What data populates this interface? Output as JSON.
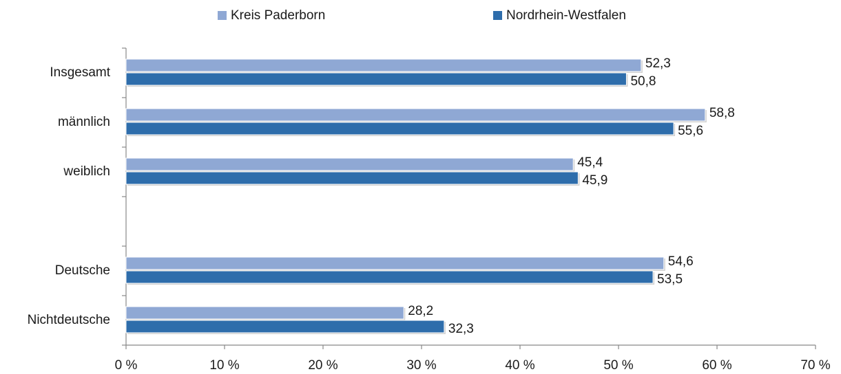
{
  "chart_data": {
    "type": "hbar",
    "categories": [
      "Insgesamt",
      "männlich",
      "weiblich",
      null,
      "Deutsche",
      "Nichtdeutsche"
    ],
    "series": [
      {
        "name": "Kreis Paderborn",
        "color": "#8fa8d4",
        "values": [
          52.3,
          58.8,
          45.4,
          null,
          54.6,
          28.2
        ],
        "value_labels": [
          "52,3",
          "58,8",
          "45,4",
          null,
          "54,6",
          "28,2"
        ]
      },
      {
        "name": "Nordrhein-Westfalen",
        "color": "#2e6dab",
        "values": [
          50.8,
          55.6,
          45.9,
          null,
          53.5,
          32.3
        ],
        "value_labels": [
          "50,8",
          "55,6",
          "45,9",
          null,
          "53,5",
          "32,3"
        ]
      }
    ],
    "xlim": [
      0,
      70
    ],
    "xticks": [
      {
        "value": 0,
        "label": "0 %"
      },
      {
        "value": 10,
        "label": "10 %"
      },
      {
        "value": 20,
        "label": "20 %"
      },
      {
        "value": 30,
        "label": "30 %"
      },
      {
        "value": 40,
        "label": "40 %"
      },
      {
        "value": 50,
        "label": "50 %"
      },
      {
        "value": 60,
        "label": "60 %"
      },
      {
        "value": 70,
        "label": "70 %"
      }
    ],
    "legend": "top"
  }
}
